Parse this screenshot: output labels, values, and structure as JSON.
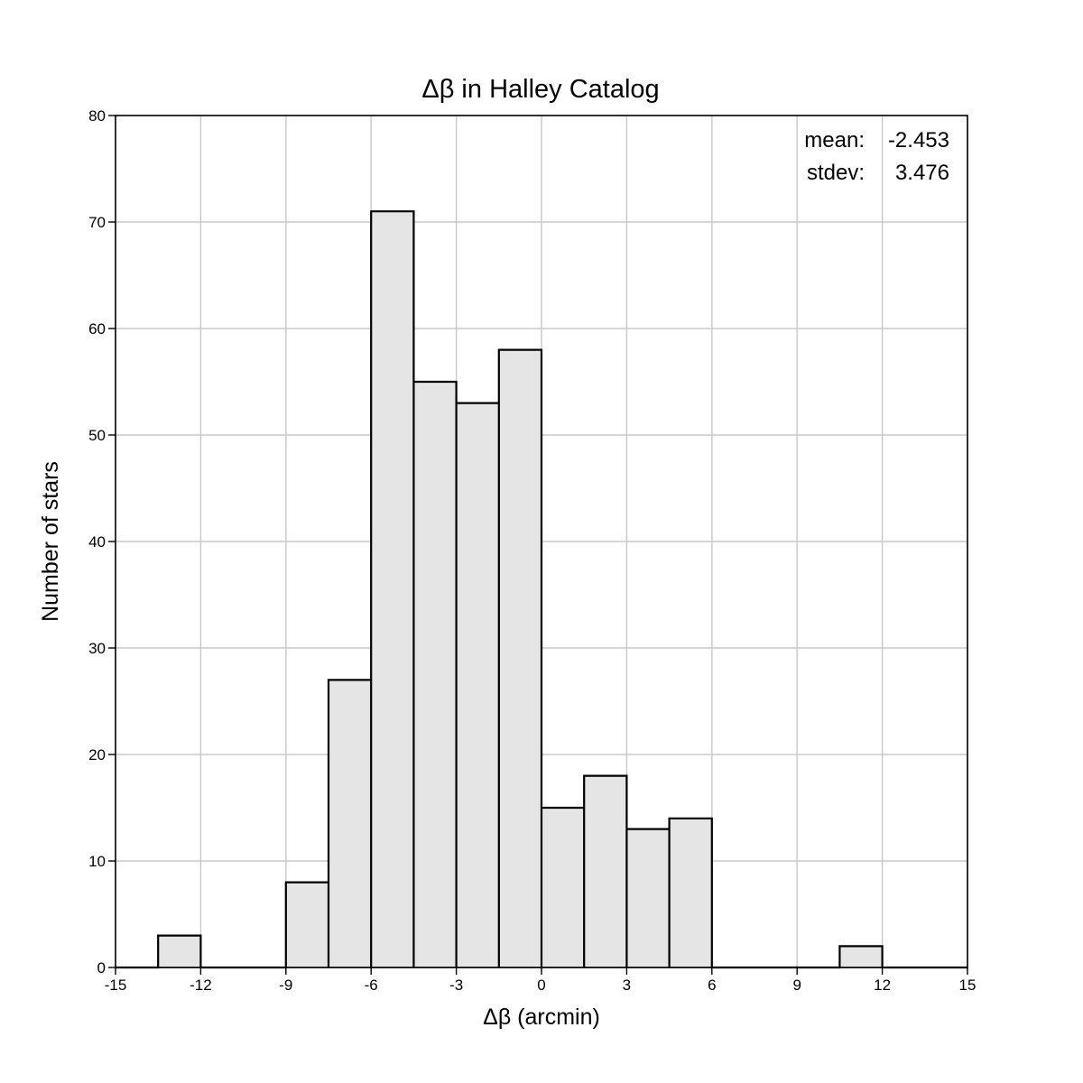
{
  "chart_data": {
    "type": "bar",
    "title": "Δβ in Halley Catalog",
    "xlabel": "Δβ (arcmin)",
    "ylabel": "Number of stars",
    "xlim": [
      -15,
      15
    ],
    "ylim": [
      0,
      80
    ],
    "xticks": [
      -15,
      -12,
      -9,
      -6,
      -3,
      0,
      3,
      6,
      9,
      12,
      15
    ],
    "yticks": [
      0,
      10,
      20,
      30,
      40,
      50,
      60,
      70,
      80
    ],
    "bin_width": 1.5,
    "bins": [
      {
        "start": -13.5,
        "end": -12.0,
        "count": 3
      },
      {
        "start": -9.0,
        "end": -7.5,
        "count": 8
      },
      {
        "start": -7.5,
        "end": -6.0,
        "count": 27
      },
      {
        "start": -6.0,
        "end": -4.5,
        "count": 71
      },
      {
        "start": -4.5,
        "end": -3.0,
        "count": 55
      },
      {
        "start": -3.0,
        "end": -1.5,
        "count": 53
      },
      {
        "start": -1.5,
        "end": 0.0,
        "count": 58
      },
      {
        "start": 0.0,
        "end": 1.5,
        "count": 15
      },
      {
        "start": 1.5,
        "end": 3.0,
        "count": 18
      },
      {
        "start": 3.0,
        "end": 4.5,
        "count": 13
      },
      {
        "start": 4.5,
        "end": 6.0,
        "count": 14
      },
      {
        "start": 10.5,
        "end": 12.0,
        "count": 2
      }
    ],
    "grid": true,
    "stats": {
      "mean_label": "mean:",
      "mean_value": "-2.453",
      "stdev_label": "stdev:",
      "stdev_value": "3.476"
    },
    "colors": {
      "bar_fill": "#e5e5e5",
      "bar_edge": "#808080",
      "outline": "#000000",
      "grid": "#c8c8c8"
    }
  }
}
